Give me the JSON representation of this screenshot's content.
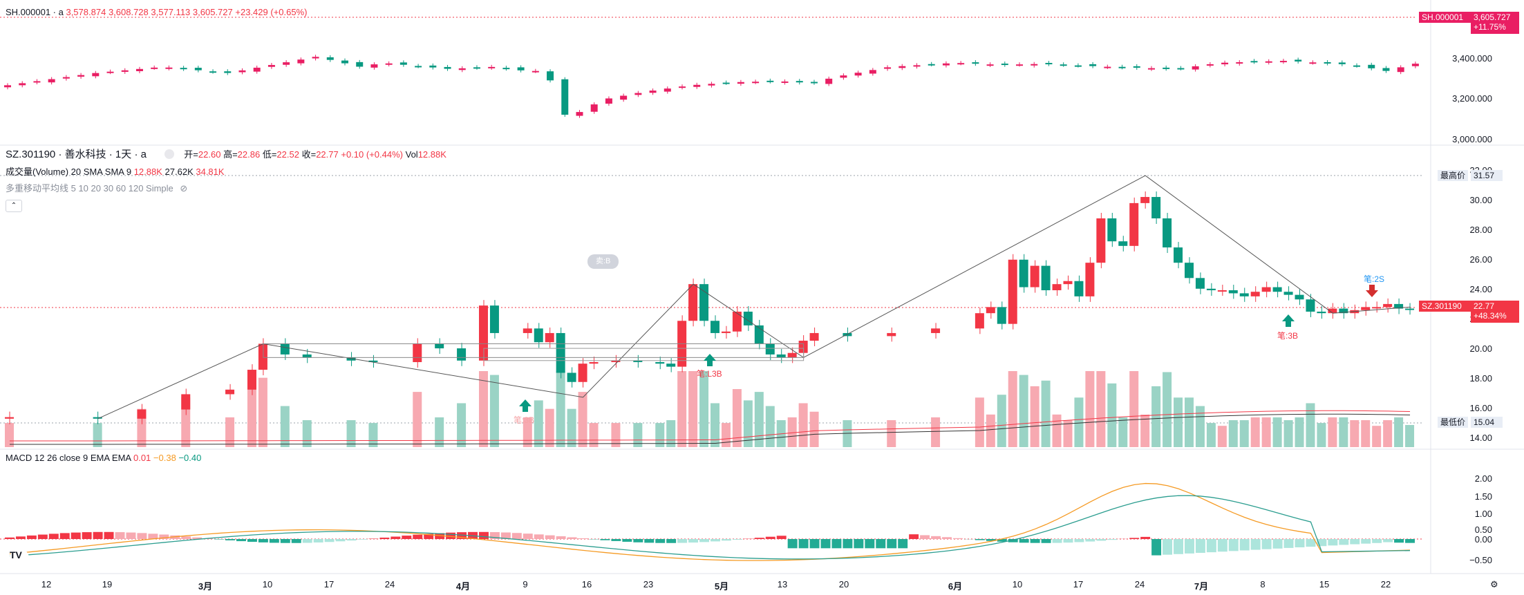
{
  "index_legend": {
    "symbol": "SH.000001 · a",
    "open": "3,578.874",
    "high": "3,608.728",
    "low": "3,577.113",
    "close": "3,605.727",
    "change": "+23.429 (+0.65%)"
  },
  "stock_legend": {
    "title": "SZ.301190 · 善水科技 · 1天 · a",
    "o_label": "开=",
    "o": "22.60",
    "h_label": "高=",
    "h": "22.86",
    "l_label": "低=",
    "l": "22.52",
    "c_label": "收=",
    "c": "22.77",
    "chg": "+0.10 (+0.44%)",
    "vol_label": "Vol",
    "vol": "12.88K"
  },
  "volume_legend": {
    "name": "成交量(Volume) 20 SMA SMA 9",
    "v1": "12.88K",
    "v2": "27.62K",
    "v3": "34.81K"
  },
  "ma_legend": {
    "name": "多重移动平均线 5 10 20 30 60 120 Simple"
  },
  "macd_legend": {
    "name": "MACD 12 26 close 9 EMA EMA",
    "v1": "0.01",
    "v2": "−0.38",
    "v3": "−0.40"
  },
  "index_axis": [
    "3,400.000",
    "3,200.000",
    "3,000.000"
  ],
  "index_tag": {
    "symbol": "SH.000001",
    "price": "3,605.727",
    "pct": "+11.75%"
  },
  "price_axis": [
    "32.00",
    "30.00",
    "28.00",
    "26.00",
    "24.00",
    "22.00",
    "20.00",
    "18.00",
    "16.00",
    "14.00"
  ],
  "highest": {
    "label": "最高价",
    "value": "31.57"
  },
  "lowest": {
    "label": "最低价",
    "value": "15.04"
  },
  "stock_tag": {
    "symbol": "SZ.301190",
    "price": "22.77",
    "pct": "+48.34%"
  },
  "macd_axis": [
    "2.00",
    "1.50",
    "1.00",
    "0.50",
    "0.00",
    "−0.50"
  ],
  "x_axis": [
    {
      "label": "12",
      "bold": false
    },
    {
      "label": "19",
      "bold": false
    },
    {
      "label": "3月",
      "bold": true
    },
    {
      "label": "10",
      "bold": false
    },
    {
      "label": "17",
      "bold": false
    },
    {
      "label": "24",
      "bold": false
    },
    {
      "label": "4月",
      "bold": true
    },
    {
      "label": "9",
      "bold": false
    },
    {
      "label": "16",
      "bold": false
    },
    {
      "label": "23",
      "bold": false
    },
    {
      "label": "5月",
      "bold": true
    },
    {
      "label": "13",
      "bold": false
    },
    {
      "label": "20",
      "bold": false
    },
    {
      "label": "6月",
      "bold": true
    },
    {
      "label": "10",
      "bold": false
    },
    {
      "label": "17",
      "bold": false
    },
    {
      "label": "24",
      "bold": false
    },
    {
      "label": "7月",
      "bold": true
    },
    {
      "label": "8",
      "bold": false
    },
    {
      "label": "15",
      "bold": false
    },
    {
      "label": "22",
      "bold": false
    }
  ],
  "annotations": {
    "bi_3b_1": "笔:3B",
    "bi_l3b": "笔:L3B",
    "bi_2s": "笔:2S",
    "bi_3b_2": "笔:3B",
    "flag": "卖:B"
  },
  "tv_logo": "TV",
  "colors": {
    "up": "#f23645",
    "down": "#089981",
    "up_vol": "#f7a9b1",
    "down_vol": "#9ad3c5"
  },
  "chart_data": {
    "type": "candlestick",
    "index_close_points": [
      [
        0,
        3270
      ],
      [
        8,
        3330
      ],
      [
        14,
        3360
      ],
      [
        20,
        3330
      ],
      [
        24,
        3370
      ],
      [
        28,
        3410
      ],
      [
        32,
        3360
      ],
      [
        34,
        3380
      ],
      [
        40,
        3350
      ],
      [
        44,
        3360
      ],
      [
        47,
        3340
      ],
      [
        49,
        3340
      ],
      [
        50,
        3120
      ],
      [
        52,
        3140
      ],
      [
        54,
        3200
      ],
      [
        58,
        3240
      ],
      [
        62,
        3270
      ],
      [
        66,
        3285
      ],
      [
        70,
        3290
      ],
      [
        73,
        3280
      ],
      [
        75,
        3310
      ],
      [
        80,
        3360
      ],
      [
        86,
        3380
      ],
      [
        90,
        3370
      ],
      [
        94,
        3375
      ],
      [
        100,
        3360
      ],
      [
        106,
        3350
      ],
      [
        110,
        3380
      ],
      [
        116,
        3390
      ],
      [
        122,
        3370
      ],
      [
        125,
        3340
      ],
      [
        128,
        3380
      ],
      [
        133,
        3450
      ],
      [
        138,
        3470
      ],
      [
        142,
        3480
      ],
      [
        146,
        3500
      ],
      [
        150,
        3520
      ],
      [
        154,
        3540
      ],
      [
        158,
        3545
      ],
      [
        160,
        3530
      ],
      [
        163,
        3550
      ],
      [
        166,
        3580
      ],
      [
        169,
        3600
      ],
      [
        171,
        3606
      ]
    ],
    "stock_candles": [
      [
        0,
        15.7
      ],
      [
        8,
        15.6
      ],
      [
        12,
        16.2
      ],
      [
        16,
        17.2
      ],
      [
        20,
        17.5
      ],
      [
        22,
        18.8
      ],
      [
        23,
        20.5
      ],
      [
        25,
        19.8
      ],
      [
        27,
        19.6
      ],
      [
        31,
        19.4
      ],
      [
        33,
        19.3
      ],
      [
        37,
        20.5
      ],
      [
        39,
        20.2
      ],
      [
        41,
        19.4
      ],
      [
        43,
        23.0
      ],
      [
        44,
        21.2
      ],
      [
        47,
        21.5
      ],
      [
        48,
        20.6
      ],
      [
        49,
        21.2
      ],
      [
        50,
        18.6
      ],
      [
        51,
        18.0
      ],
      [
        52,
        19.2
      ],
      [
        53,
        19.3
      ],
      [
        55,
        19.4
      ],
      [
        57,
        19.3
      ],
      [
        59,
        19.2
      ],
      [
        60,
        19.0
      ],
      [
        61,
        22.0
      ],
      [
        62,
        24.4
      ],
      [
        63,
        22.0
      ],
      [
        64,
        21.2
      ],
      [
        65,
        21.3
      ],
      [
        66,
        22.6
      ],
      [
        67,
        21.7
      ],
      [
        68,
        20.5
      ],
      [
        69,
        19.8
      ],
      [
        70,
        19.6
      ],
      [
        71,
        19.9
      ],
      [
        72,
        20.7
      ],
      [
        73,
        21.2
      ],
      [
        76,
        21.0
      ],
      [
        80,
        21.2
      ],
      [
        84,
        21.5
      ],
      [
        88,
        22.5
      ],
      [
        89,
        22.9
      ],
      [
        90,
        21.8
      ],
      [
        91,
        26.0
      ],
      [
        92,
        24.2
      ],
      [
        93,
        25.6
      ],
      [
        94,
        24.0
      ],
      [
        95,
        24.4
      ],
      [
        96,
        24.6
      ],
      [
        97,
        23.6
      ],
      [
        98,
        25.8
      ],
      [
        99,
        28.7
      ],
      [
        100,
        27.2
      ],
      [
        101,
        26.9
      ],
      [
        102,
        29.7
      ],
      [
        103,
        30.1
      ],
      [
        104,
        28.7
      ],
      [
        105,
        26.8
      ],
      [
        106,
        25.8
      ],
      [
        107,
        24.8
      ],
      [
        108,
        24.1
      ],
      [
        109,
        24.0
      ],
      [
        110,
        24.0
      ],
      [
        111,
        23.8
      ],
      [
        112,
        23.6
      ],
      [
        113,
        23.9
      ],
      [
        114,
        24.2
      ],
      [
        115,
        23.9
      ],
      [
        116,
        23.7
      ],
      [
        117,
        23.4
      ],
      [
        118,
        22.6
      ],
      [
        119,
        22.5
      ],
      [
        120,
        22.8
      ],
      [
        121,
        22.5
      ],
      [
        122,
        22.7
      ],
      [
        123,
        22.9
      ],
      [
        124,
        22.9
      ],
      [
        125,
        23.1
      ],
      [
        126,
        22.8
      ],
      [
        127,
        22.77
      ]
    ],
    "volume_sma_note": "20 SMA and SMA 9 lines",
    "macd": {
      "dif_last": -0.38,
      "dea_last": -0.4,
      "hist_last": 0.01,
      "peak_dif": 1.85,
      "min_dif": -0.6
    }
  }
}
